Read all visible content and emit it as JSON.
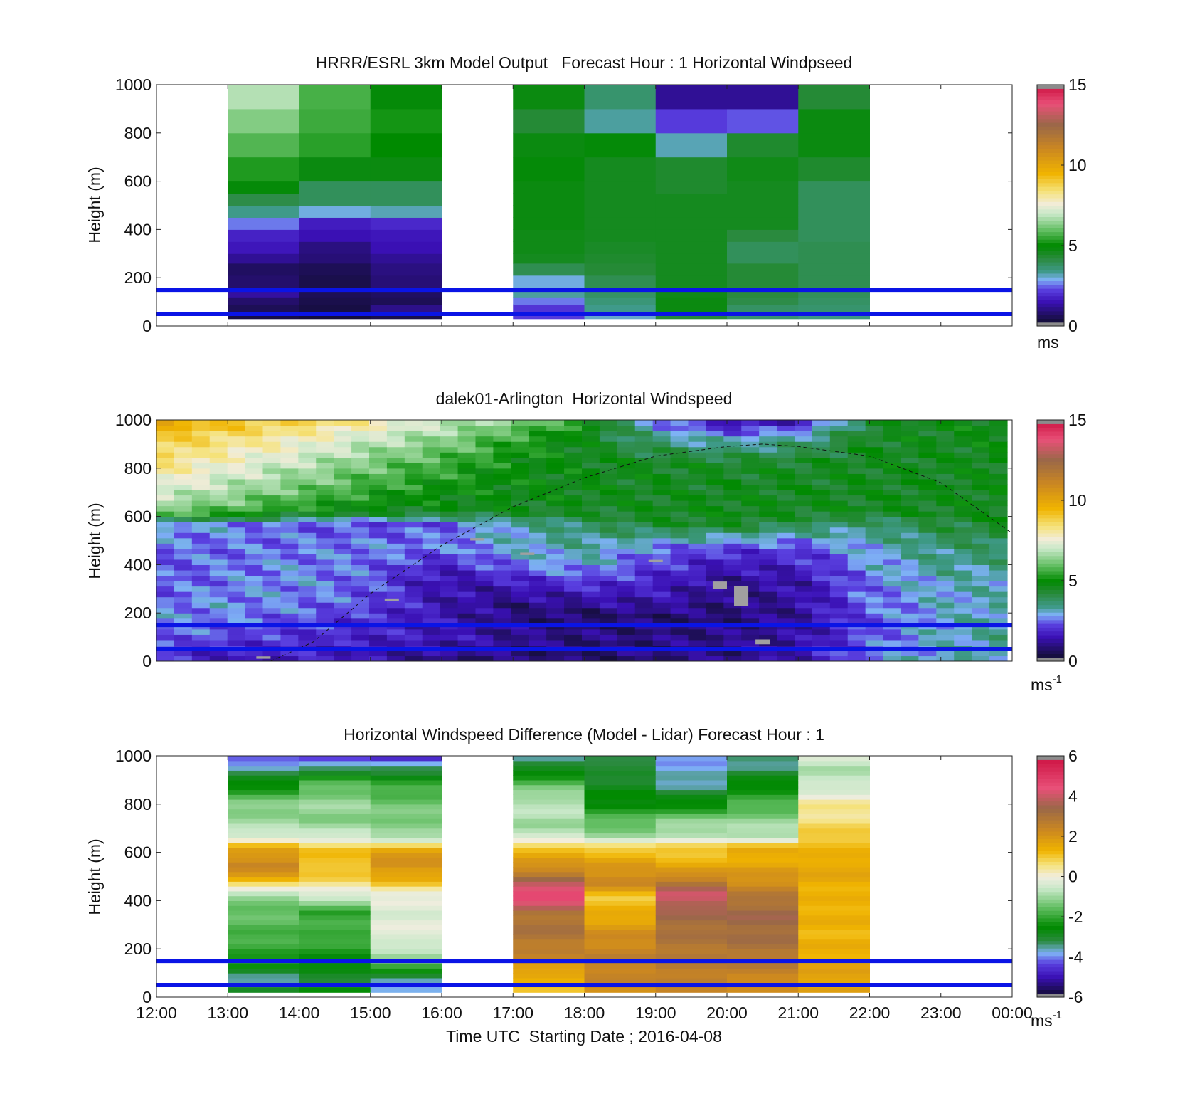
{
  "chart_data": [
    {
      "type": "heatmap",
      "title": "HRRR/ESRL 3km Model Output   Forecast Hour : 1 Horizontal Windpseed",
      "ylabel": "Height (m)",
      "xlabel": "",
      "x_range_hours": [
        12,
        24
      ],
      "ylim": [
        0,
        1000
      ],
      "yticks": [
        "0",
        "200",
        "400",
        "600",
        "800",
        "1000"
      ],
      "colorbar": {
        "ticks": [
          "0",
          "5",
          "10",
          "15"
        ],
        "range": [
          0,
          15
        ],
        "unit": "ms",
        "unit_sup": "",
        "scale": "speed"
      },
      "reference_lines_m": [
        50,
        150
      ],
      "rows_height_m": [
        [
          30,
          60
        ],
        [
          60,
          90
        ],
        [
          90,
          120
        ],
        [
          120,
          150
        ],
        [
          150,
          210
        ],
        [
          210,
          260
        ],
        [
          260,
          300
        ],
        [
          300,
          350
        ],
        [
          350,
          400
        ],
        [
          400,
          450
        ],
        [
          450,
          500
        ],
        [
          500,
          550
        ],
        [
          550,
          600
        ],
        [
          600,
          700
        ],
        [
          700,
          800
        ],
        [
          800,
          900
        ],
        [
          900,
          1000
        ]
      ],
      "columns": [
        {
          "x0": 13,
          "x1": 14,
          "values": [
            0.4,
            0.6,
            0.8,
            1.3,
            0.8,
            0.7,
            1.2,
            1.6,
            1.8,
            2.6,
            3.4,
            4.1,
            4.9,
            5.3,
            5.8,
            6.3,
            6.8
          ]
        },
        {
          "x0": 14,
          "x1": 15,
          "values": [
            0.3,
            0.4,
            0.5,
            0.6,
            0.5,
            0.6,
            0.9,
            1.0,
            1.5,
            1.7,
            3.0,
            3.9,
            3.9,
            4.8,
            5.4,
            5.6,
            5.7
          ]
        },
        {
          "x0": 15,
          "x1": 16,
          "values": [
            0.5,
            1.1,
            0.6,
            0.7,
            0.9,
            1.0,
            1.2,
            1.5,
            1.6,
            1.9,
            3.2,
            3.9,
            3.9,
            4.8,
            5.0,
            5.2,
            4.9
          ]
        },
        {
          "x0": 17,
          "x1": 18,
          "values": [
            2.2,
            2.1,
            2.6,
            3.3,
            3.0,
            4.0,
            4.6,
            4.7,
            4.7,
            4.8,
            4.8,
            4.8,
            4.8,
            4.9,
            4.8,
            4.3,
            4.8
          ]
        },
        {
          "x0": 18,
          "x1": 19,
          "values": [
            3.1,
            3.4,
            3.6,
            3.8,
            4.0,
            4.3,
            4.4,
            4.5,
            4.6,
            4.6,
            4.6,
            4.6,
            4.6,
            4.6,
            4.9,
            3.3,
            3.7
          ]
        },
        {
          "x0": 19,
          "x1": 20,
          "values": [
            4.3,
            4.8,
            4.8,
            4.7,
            4.6,
            4.6,
            4.6,
            4.6,
            4.6,
            4.6,
            4.6,
            4.6,
            4.4,
            4.4,
            3.2,
            2.2,
            1.2
          ]
        },
        {
          "x0": 20,
          "x1": 21,
          "values": [
            3.7,
            3.8,
            4.1,
            4.2,
            4.3,
            4.3,
            3.9,
            3.9,
            4.2,
            4.6,
            4.6,
            4.6,
            4.6,
            4.7,
            4.4,
            2.4,
            1.2
          ]
        },
        {
          "x0": 21,
          "x1": 22,
          "values": [
            3.5,
            3.7,
            3.8,
            3.9,
            4.0,
            4.0,
            4.0,
            4.0,
            3.9,
            3.9,
            3.9,
            3.9,
            3.9,
            4.4,
            4.8,
            4.8,
            4.3
          ]
        }
      ]
    },
    {
      "type": "heatmap",
      "title": "dalek01-Arlington  Horizontal Windspeed",
      "ylabel": "Height (m)",
      "xlabel": "",
      "x_range_hours": [
        12,
        24
      ],
      "ylim": [
        0,
        1000
      ],
      "yticks": [
        "0",
        "200",
        "400",
        "600",
        "800",
        "1000"
      ],
      "colorbar": {
        "ticks": [
          "0",
          "5",
          "10",
          "15"
        ],
        "range": [
          0,
          15
        ],
        "unit": "ms",
        "unit_sup": "-1",
        "scale": "speed"
      },
      "reference_lines_m": [
        50,
        150
      ],
      "data_extent_hours": [
        12,
        23.93
      ],
      "columns_count": 48,
      "height_anchors_m": [
        0,
        100,
        180,
        240,
        330,
        400,
        470,
        570,
        620,
        700,
        820,
        920,
        1000
      ],
      "time_anchors_h": [
        12,
        13,
        14,
        15,
        16,
        17,
        18,
        19,
        20,
        21,
        22,
        23,
        24
      ],
      "speed_grid": [
        [
          2.0,
          1.5,
          1.7,
          1.4,
          1.0,
          0.8,
          0.8,
          0.9,
          1.0,
          1.6,
          2.6,
          3.2,
          3.4
        ],
        [
          2.5,
          2.2,
          2.0,
          1.8,
          1.6,
          1.2,
          1.0,
          1.0,
          1.1,
          1.3,
          2.4,
          3.1,
          3.4
        ],
        [
          2.8,
          2.6,
          2.4,
          2.0,
          1.5,
          1.0,
          0.7,
          0.8,
          0.9,
          1.2,
          2.4,
          3.0,
          3.3
        ],
        [
          2.6,
          2.8,
          2.6,
          2.3,
          1.5,
          1.0,
          1.2,
          1.4,
          1.0,
          1.3,
          2.5,
          3.0,
          3.2
        ],
        [
          2.3,
          2.6,
          2.8,
          2.4,
          1.4,
          1.7,
          2.2,
          1.8,
          1.2,
          1.4,
          2.6,
          3.1,
          3.2
        ],
        [
          2.4,
          2.6,
          2.7,
          2.5,
          1.8,
          2.6,
          3.0,
          2.2,
          1.6,
          1.8,
          2.8,
          3.4,
          3.5
        ],
        [
          2.5,
          2.5,
          2.6,
          2.7,
          2.6,
          3.0,
          3.3,
          2.6,
          2.2,
          2.2,
          3.0,
          3.6,
          3.8
        ],
        [
          3.0,
          2.8,
          2.4,
          2.2,
          2.4,
          3.2,
          3.8,
          4.4,
          4.6,
          4.0,
          3.6,
          4.2,
          4.6
        ],
        [
          6.2,
          5.8,
          5.0,
          4.7,
          4.6,
          4.6,
          4.5,
          4.6,
          4.7,
          4.6,
          4.6,
          4.6,
          4.7
        ],
        [
          7.2,
          6.6,
          6.0,
          5.4,
          5.0,
          4.8,
          4.7,
          4.6,
          4.6,
          4.6,
          4.6,
          4.6,
          4.7
        ],
        [
          8.4,
          7.6,
          6.9,
          6.2,
          5.6,
          5.0,
          4.7,
          4.6,
          4.5,
          4.5,
          4.6,
          4.6,
          4.7
        ],
        [
          9.0,
          8.4,
          7.8,
          7.0,
          6.4,
          5.5,
          4.6,
          3.6,
          3.0,
          3.4,
          4.6,
          4.6,
          4.8
        ],
        [
          9.8,
          9.4,
          8.8,
          8.1,
          7.1,
          6.3,
          5.4,
          2.6,
          1.2,
          1.6,
          4.2,
          4.8,
          4.9
        ]
      ],
      "gray_patches": [
        [
          19.8,
          20.0,
          300,
          330
        ],
        [
          20.1,
          20.3,
          230,
          310
        ],
        [
          18.9,
          19.1,
          410,
          420
        ],
        [
          15.2,
          15.4,
          250,
          260
        ],
        [
          16.4,
          16.6,
          500,
          510
        ],
        [
          17.1,
          17.3,
          440,
          450
        ],
        [
          13.4,
          13.6,
          10,
          20
        ],
        [
          20.4,
          20.6,
          70,
          90
        ]
      ],
      "dashed_curve": [
        [
          13.6,
          0
        ],
        [
          14.2,
          80
        ],
        [
          15,
          280
        ],
        [
          16,
          480
        ],
        [
          17,
          640
        ],
        [
          18,
          760
        ],
        [
          19,
          850
        ],
        [
          20,
          890
        ],
        [
          20.5,
          900
        ],
        [
          21,
          890
        ],
        [
          22,
          850
        ],
        [
          23,
          740
        ],
        [
          24,
          530
        ]
      ]
    },
    {
      "type": "heatmap",
      "title": "Horizontal Windspeed Difference (Model - Lidar) Forecast Hour : 1",
      "ylabel": "Height (m)",
      "xlabel": "Time UTC  Starting Date ; 2016-04-08",
      "x_range_hours": [
        12,
        24
      ],
      "xticks": [
        "12:00",
        "13:00",
        "14:00",
        "15:00",
        "16:00",
        "17:00",
        "18:00",
        "19:00",
        "20:00",
        "21:00",
        "22:00",
        "23:00",
        "00:00"
      ],
      "ylim": [
        0,
        1000
      ],
      "yticks": [
        "0",
        "200",
        "400",
        "600",
        "800",
        "1000"
      ],
      "colorbar": {
        "ticks": [
          "-6",
          "-4",
          "-2",
          "0",
          "2",
          "4",
          "6"
        ],
        "range": [
          -6,
          6
        ],
        "unit": "ms",
        "unit_sup": "-1",
        "scale": "diff"
      },
      "reference_lines_m": [
        50,
        150
      ],
      "height_anchors_m": [
        20,
        80,
        150,
        250,
        350,
        420,
        480,
        550,
        620,
        660,
        720,
        800,
        880,
        950,
        1000
      ],
      "columns": [
        {
          "x0": 13,
          "x1": 14,
          "values": [
            -3.0,
            -3.5,
            -2.2,
            -1.8,
            -1.5,
            -1.2,
            1.2,
            2.5,
            1.5,
            -0.2,
            -1.0,
            -1.2,
            -2.5,
            -3.5,
            -4.5
          ]
        },
        {
          "x0": 14,
          "x1": 15,
          "values": [
            -2.5,
            -3.0,
            -2.6,
            -1.8,
            -2.0,
            -0.5,
            0.7,
            1.2,
            1.0,
            -0.3,
            -1.2,
            -1.0,
            -1.6,
            -3.2,
            -4.8
          ]
        },
        {
          "x0": 15,
          "x1": 16,
          "values": [
            -3.8,
            -3.5,
            -1.2,
            -0.2,
            -0.3,
            -0.2,
            1.2,
            2.2,
            1.5,
            -1.0,
            -1.2,
            -1.4,
            -2.0,
            -3.3,
            -5.0
          ]
        },
        {
          "x0": 17,
          "x1": 18,
          "values": [
            1.2,
            1.3,
            2.2,
            3.0,
            3.0,
            5.0,
            3.5,
            2.0,
            1.2,
            -0.5,
            -1.0,
            -0.6,
            -1.5,
            -3.0,
            -3.5
          ]
        },
        {
          "x0": 18,
          "x1": 19,
          "values": [
            2.2,
            2.4,
            2.6,
            2.2,
            1.4,
            1.0,
            2.5,
            1.8,
            1.0,
            -1.0,
            -1.5,
            -2.5,
            -2.8,
            -3.2,
            -3.0
          ]
        },
        {
          "x0": 19,
          "x1": 20,
          "values": [
            2.4,
            2.6,
            2.8,
            3.0,
            3.4,
            4.2,
            2.8,
            1.4,
            1.0,
            -0.6,
            -1.0,
            -2.5,
            -3.5,
            -3.8,
            -3.8
          ]
        },
        {
          "x0": 20,
          "x1": 21,
          "values": [
            2.0,
            2.4,
            2.8,
            3.2,
            3.4,
            2.8,
            2.2,
            1.6,
            1.4,
            -0.6,
            -1.0,
            -1.8,
            -2.5,
            -3.3,
            -3.5
          ]
        },
        {
          "x0": 21,
          "x1": 22,
          "values": [
            1.6,
            1.8,
            1.5,
            1.3,
            1.4,
            1.3,
            1.5,
            1.6,
            1.2,
            1.1,
            0.6,
            0.4,
            -0.6,
            -0.8,
            -0.4
          ]
        }
      ]
    }
  ]
}
